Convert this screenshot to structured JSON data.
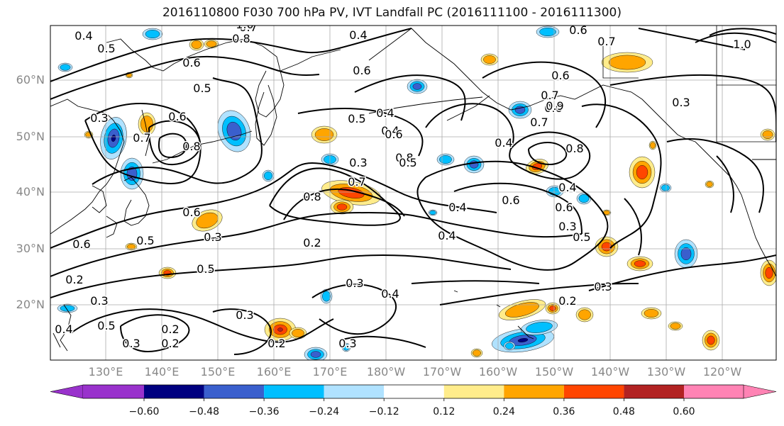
{
  "title": "2016110800 F030 700 hPa PV, IVT Landfall PC (2016111100 - 2016111300)",
  "map": {
    "lat_labels": [
      "60°N",
      "50°N",
      "40°N",
      "30°N",
      "20°N"
    ],
    "lon_labels": [
      "130°E",
      "140°E",
      "150°E",
      "160°E",
      "170°E",
      "180°W",
      "170°W",
      "160°W",
      "150°W",
      "140°W",
      "130°W",
      "120°W"
    ],
    "contour_labels": [
      "0.4",
      "0.5",
      "0.6",
      "0.7",
      "0.8",
      "1.0",
      "0.4",
      "0.6",
      "0.7",
      "1.0",
      "0.8",
      "0.5",
      "0.6",
      "0.6",
      "0.4",
      "0.5",
      "0.4",
      "0.3",
      "0.7",
      "0.8",
      "0.8",
      "0.7",
      "0.6",
      "0.5",
      "0.3",
      "0.5",
      "0.6",
      "0.3",
      "0.6",
      "0.5",
      "0.2",
      "0.3",
      "0.4",
      "0.3",
      "0.2",
      "0.5",
      "0.2",
      "0.3",
      "0.2",
      "0.2",
      "0.3",
      "0.3",
      "0.4",
      "0.4",
      "0.6",
      "0.6",
      "0.4",
      "0.4",
      "0.7",
      "0.6",
      "0.5",
      "0.3",
      "0.4",
      "0.2",
      "0.3",
      "0.8",
      "0.9",
      "0.7",
      "0.6",
      "0.3"
    ]
  },
  "colorbar": {
    "ticks": [
      "−0.60",
      "−0.48",
      "−0.36",
      "−0.24",
      "−0.12",
      "0.12",
      "0.24",
      "0.36",
      "0.48",
      "0.60"
    ],
    "colors": [
      "#9932cc",
      "#000080",
      "#3a5fcd",
      "#00bfff",
      "#b0e2ff",
      "#ffffff",
      "#ffec8b",
      "#ffa500",
      "#ff4500",
      "#b22222",
      "#ff83b4"
    ]
  }
}
